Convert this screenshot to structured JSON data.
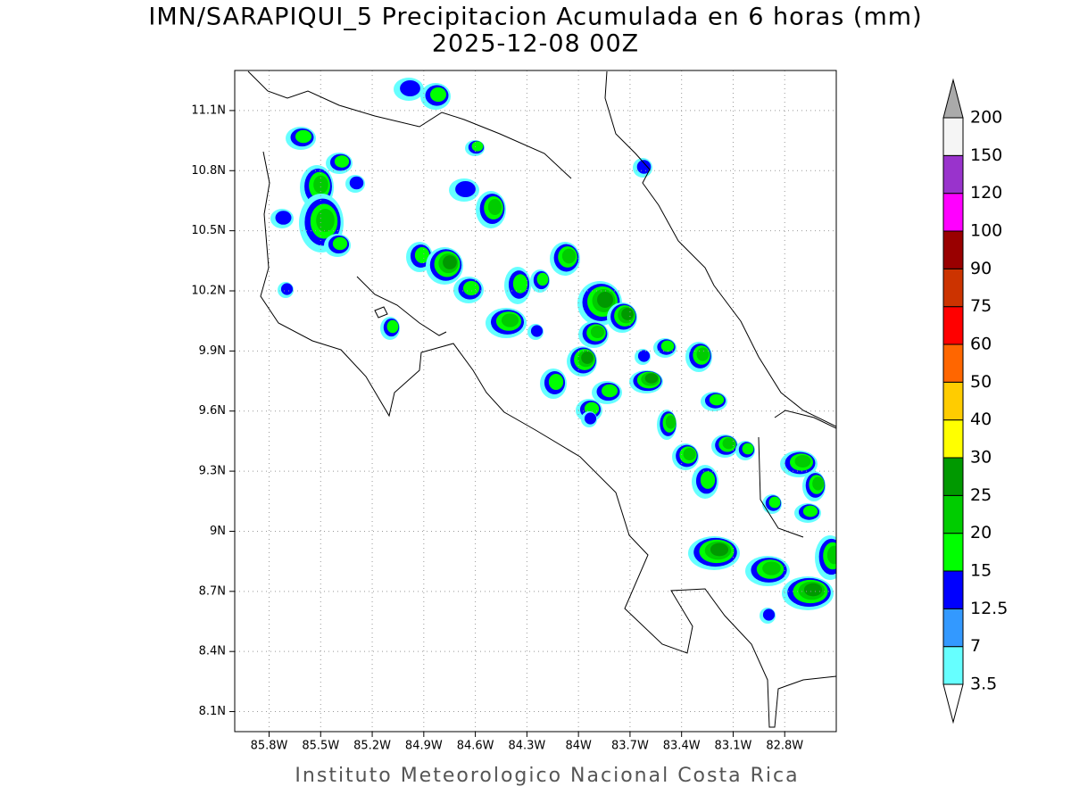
{
  "map": {
    "title": "IMN/SARAPIQUI_5 Precipitacion Acumulada en 6 horas (mm)",
    "subtitle": "2025-12-08 00Z",
    "footer": "Instituto Meteorologico Nacional Costa Rica",
    "xlim": [
      -86.0,
      -82.5
    ],
    "ylim": [
      8.0,
      11.3
    ],
    "xticks": [
      {
        "value": -85.8,
        "label": "85.8W"
      },
      {
        "value": -85.5,
        "label": "85.5W"
      },
      {
        "value": -85.2,
        "label": "85.2W"
      },
      {
        "value": -84.9,
        "label": "84.9W"
      },
      {
        "value": -84.6,
        "label": "84.6W"
      },
      {
        "value": -84.3,
        "label": "84.3W"
      },
      {
        "value": -84,
        "label": "84W"
      },
      {
        "value": -83.7,
        "label": "83.7W"
      },
      {
        "value": -83.4,
        "label": "83.4W"
      },
      {
        "value": -83.1,
        "label": "83.1W"
      },
      {
        "value": -82.8,
        "label": "82.8W"
      }
    ],
    "yticks": [
      {
        "value": 11.1,
        "label": "11.1N"
      },
      {
        "value": 10.8,
        "label": "10.8N"
      },
      {
        "value": 10.5,
        "label": "10.5N"
      },
      {
        "value": 10.2,
        "label": "10.2N"
      },
      {
        "value": 9.9,
        "label": "9.9N"
      },
      {
        "value": 9.6,
        "label": "9.6N"
      },
      {
        "value": 9.3,
        "label": "9.3N"
      },
      {
        "value": 9,
        "label": "9N"
      },
      {
        "value": 8.7,
        "label": "8.7N"
      },
      {
        "value": 8.4,
        "label": "8.4N"
      },
      {
        "value": 8.1,
        "label": "8.1N"
      }
    ],
    "grid": true,
    "colorbar": {
      "levels": [
        3.5,
        7,
        12.5,
        15,
        20,
        25,
        30,
        40,
        50,
        60,
        75,
        90,
        100,
        120,
        150,
        200
      ],
      "colors": [
        "#66ffff",
        "#3399ff",
        "#0000ff",
        "#00ff00",
        "#00cc00",
        "#009900",
        "#ffff00",
        "#ffcc00",
        "#ff6600",
        "#ff0000",
        "#cc3300",
        "#990000",
        "#ff00ff",
        "#9933cc",
        "#f5f5f5"
      ],
      "under_color": "#ffffff",
      "over_color": "#aaaaaa"
    }
  }
}
